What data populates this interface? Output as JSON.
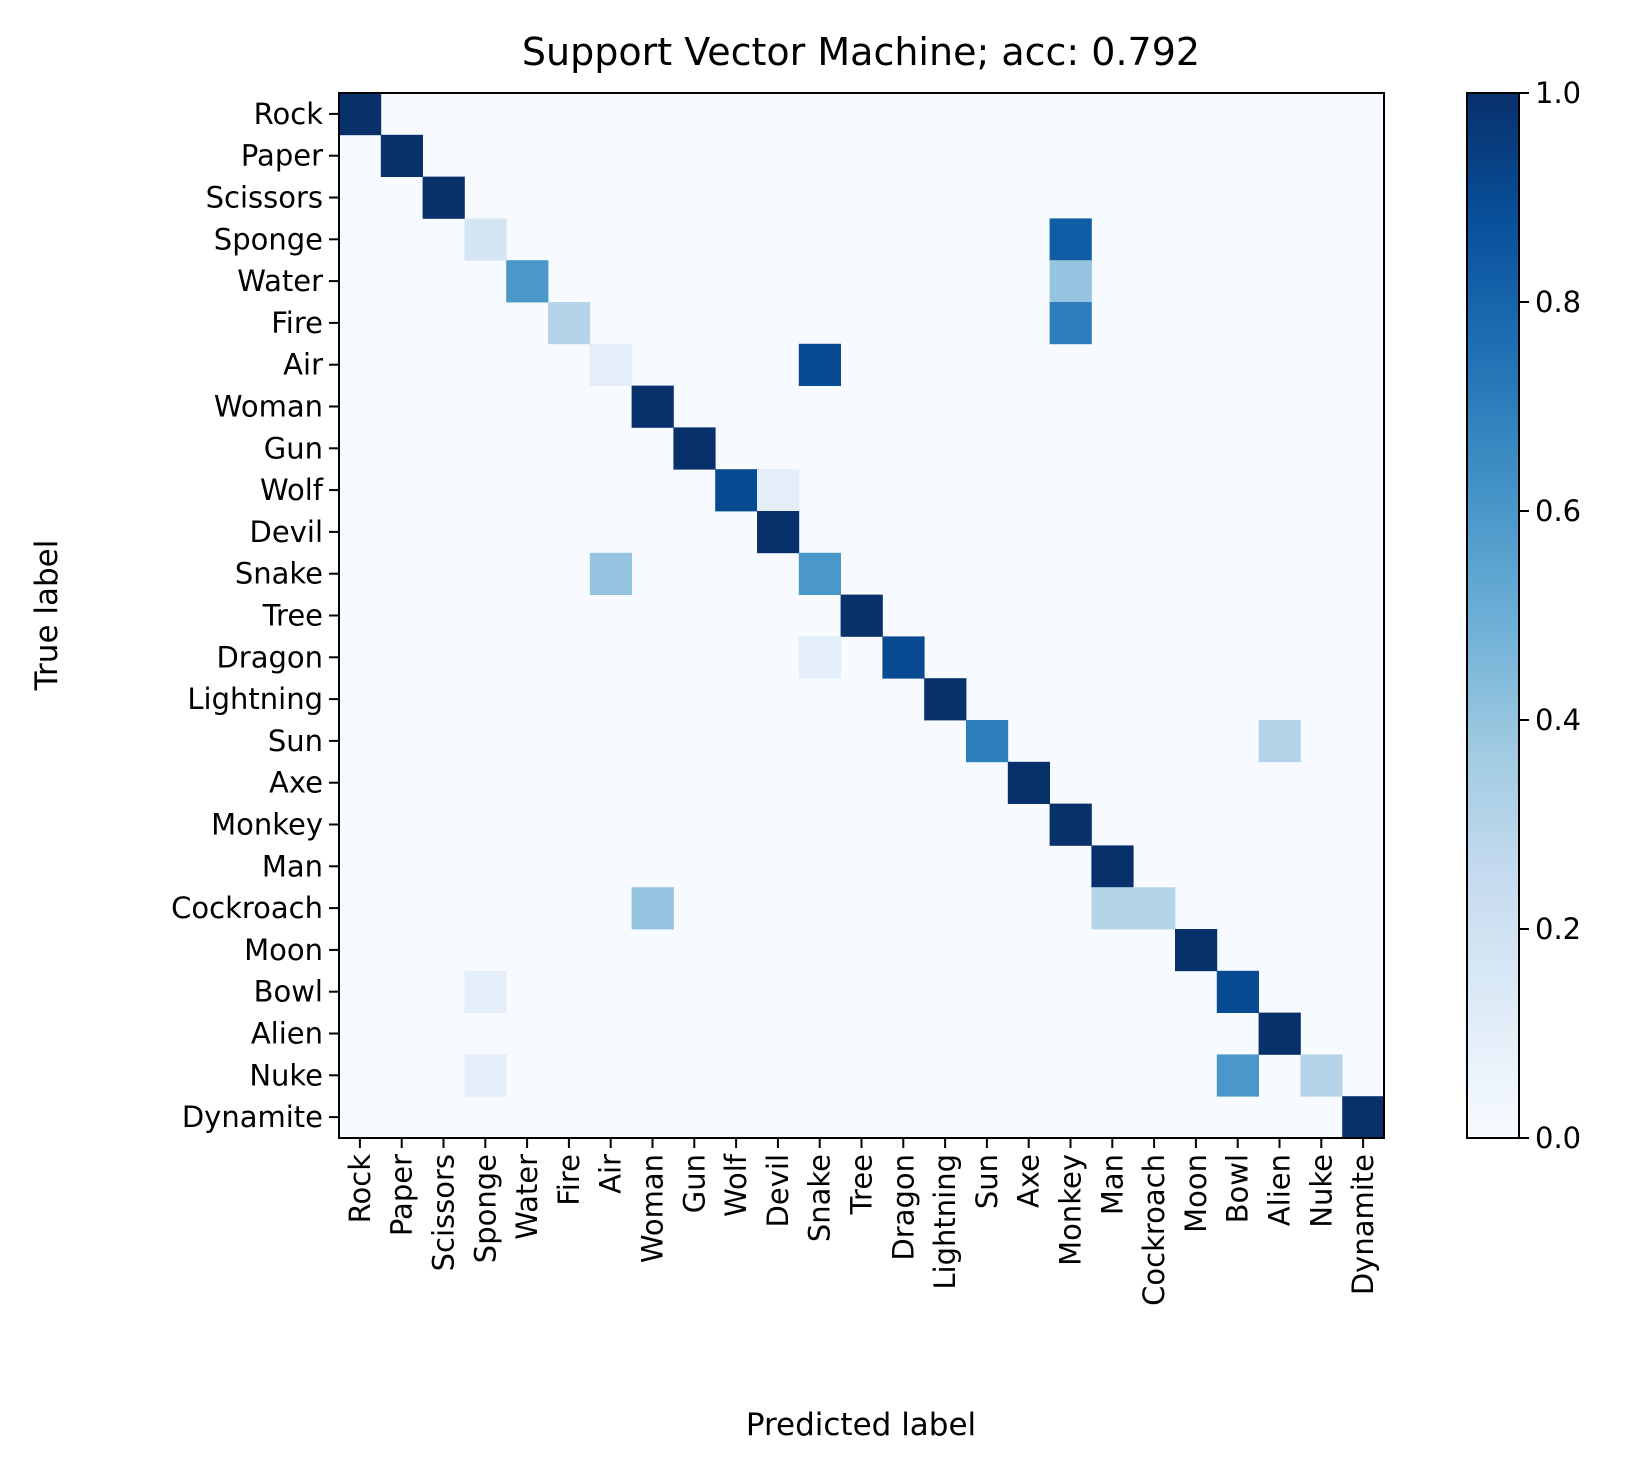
{
  "chart_data": {
    "type": "heatmap",
    "title": "Support Vector Machine; acc: 0.792",
    "xlabel": "Predicted label",
    "ylabel": "True label",
    "labels": [
      "Rock",
      "Paper",
      "Scissors",
      "Sponge",
      "Water",
      "Fire",
      "Air",
      "Woman",
      "Gun",
      "Wolf",
      "Devil",
      "Snake",
      "Tree",
      "Dragon",
      "Lightning",
      "Sun",
      "Axe",
      "Monkey",
      "Man",
      "Cockroach",
      "Moon",
      "Bowl",
      "Alien",
      "Nuke",
      "Dynamite"
    ],
    "cells": [
      {
        "row": 0,
        "col": 0,
        "value": 1.0
      },
      {
        "row": 1,
        "col": 1,
        "value": 1.0
      },
      {
        "row": 2,
        "col": 2,
        "value": 1.0
      },
      {
        "row": 3,
        "col": 3,
        "value": 0.17
      },
      {
        "row": 3,
        "col": 17,
        "value": 0.83
      },
      {
        "row": 4,
        "col": 4,
        "value": 0.6
      },
      {
        "row": 4,
        "col": 17,
        "value": 0.4
      },
      {
        "row": 5,
        "col": 5,
        "value": 0.3
      },
      {
        "row": 5,
        "col": 17,
        "value": 0.7
      },
      {
        "row": 6,
        "col": 6,
        "value": 0.1
      },
      {
        "row": 6,
        "col": 11,
        "value": 0.9
      },
      {
        "row": 7,
        "col": 7,
        "value": 1.0
      },
      {
        "row": 8,
        "col": 8,
        "value": 1.0
      },
      {
        "row": 9,
        "col": 9,
        "value": 0.9
      },
      {
        "row": 9,
        "col": 10,
        "value": 0.1
      },
      {
        "row": 10,
        "col": 10,
        "value": 1.0
      },
      {
        "row": 11,
        "col": 6,
        "value": 0.4
      },
      {
        "row": 11,
        "col": 11,
        "value": 0.6
      },
      {
        "row": 12,
        "col": 12,
        "value": 1.0
      },
      {
        "row": 13,
        "col": 11,
        "value": 0.1
      },
      {
        "row": 13,
        "col": 13,
        "value": 0.9
      },
      {
        "row": 14,
        "col": 14,
        "value": 1.0
      },
      {
        "row": 15,
        "col": 15,
        "value": 0.7
      },
      {
        "row": 15,
        "col": 22,
        "value": 0.3
      },
      {
        "row": 16,
        "col": 16,
        "value": 1.0
      },
      {
        "row": 17,
        "col": 17,
        "value": 1.0
      },
      {
        "row": 18,
        "col": 18,
        "value": 1.0
      },
      {
        "row": 19,
        "col": 7,
        "value": 0.4
      },
      {
        "row": 19,
        "col": 18,
        "value": 0.3
      },
      {
        "row": 19,
        "col": 19,
        "value": 0.3
      },
      {
        "row": 20,
        "col": 20,
        "value": 1.0
      },
      {
        "row": 21,
        "col": 3,
        "value": 0.1
      },
      {
        "row": 21,
        "col": 21,
        "value": 0.9
      },
      {
        "row": 22,
        "col": 22,
        "value": 1.0
      },
      {
        "row": 23,
        "col": 3,
        "value": 0.1
      },
      {
        "row": 23,
        "col": 21,
        "value": 0.6
      },
      {
        "row": 23,
        "col": 23,
        "value": 0.3
      },
      {
        "row": 24,
        "col": 24,
        "value": 1.0
      }
    ],
    "vmin": 0.0,
    "vmax": 1.0,
    "colormap": "Blues",
    "colorbar_ticks": [
      "0.0",
      "0.2",
      "0.4",
      "0.6",
      "0.8",
      "1.0"
    ],
    "grid": false,
    "legend": "colorbar-right"
  }
}
